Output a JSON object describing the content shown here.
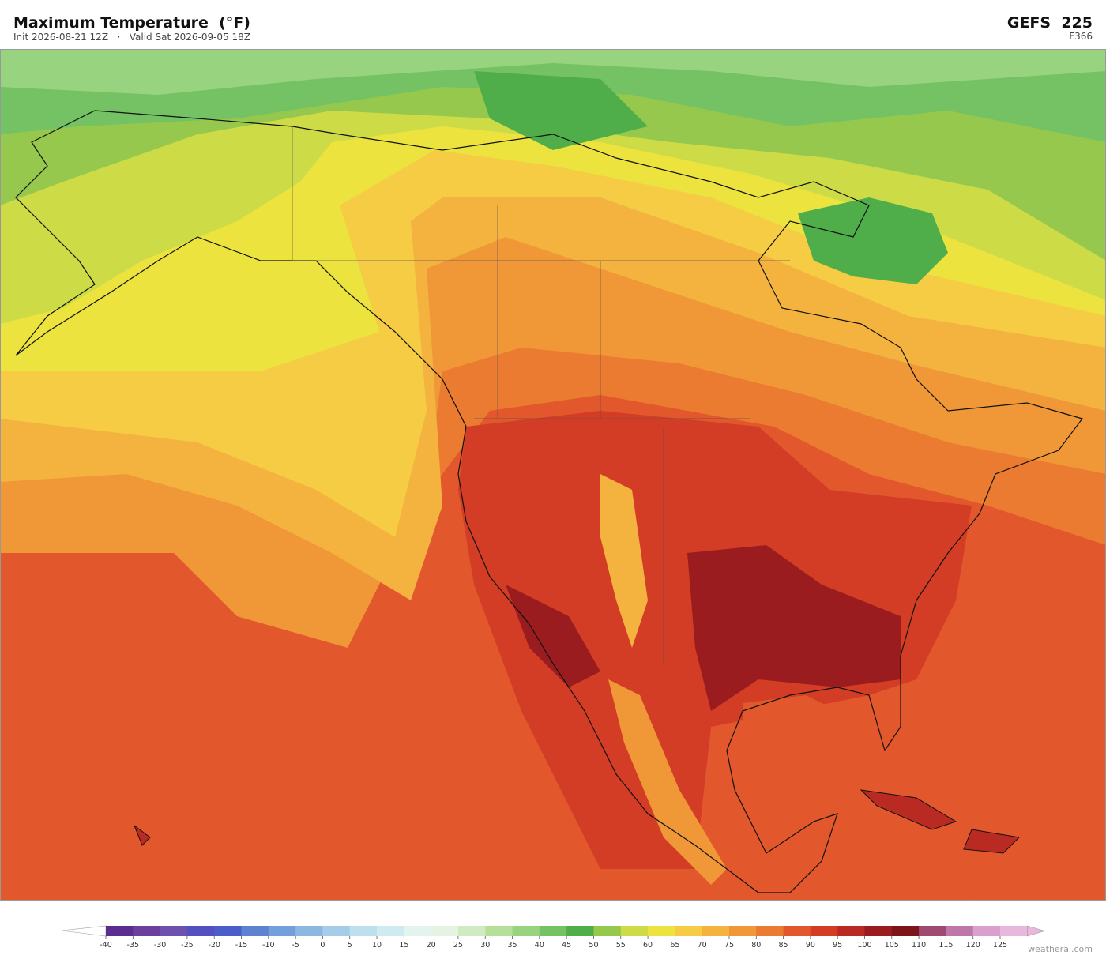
{
  "header": {
    "title": "Maximum Temperature  (°F)",
    "subtitle": "Init 2026-08-21 12Z   ·   Valid Sat 2026-09-05 18Z",
    "model": "GEFS  225",
    "forecast_hour": "F366"
  },
  "colorbar": {
    "ticks": [
      -40,
      -35,
      -30,
      -25,
      -20,
      -15,
      -10,
      -5,
      0,
      5,
      10,
      15,
      20,
      25,
      30,
      35,
      40,
      45,
      50,
      55,
      60,
      65,
      70,
      75,
      80,
      85,
      90,
      95,
      100,
      105,
      110,
      115,
      120,
      125
    ],
    "colors": [
      "#5b2d90",
      "#6b3f9c",
      "#6e50ad",
      "#5550c0",
      "#4c5dc9",
      "#5d82d0",
      "#73a0da",
      "#8cb7e0",
      "#a6cde8",
      "#bddfee",
      "#d0eaf2",
      "#e2f3f0",
      "#e5f4e2",
      "#d0ebc1",
      "#b6e09a",
      "#98d47f",
      "#74c263",
      "#4fae49",
      "#95c84d",
      "#cddb47",
      "#ece33f",
      "#f6cc44",
      "#f4b33f",
      "#f09837",
      "#eb7b30",
      "#e2572b",
      "#d33c25",
      "#b92b22",
      "#9b1c1e",
      "#7b1519",
      "#9e4a72",
      "#bf77a9",
      "#d99fcd",
      "#e7b8dc"
    ]
  },
  "footer": {
    "credit": "weatherai.com"
  }
}
